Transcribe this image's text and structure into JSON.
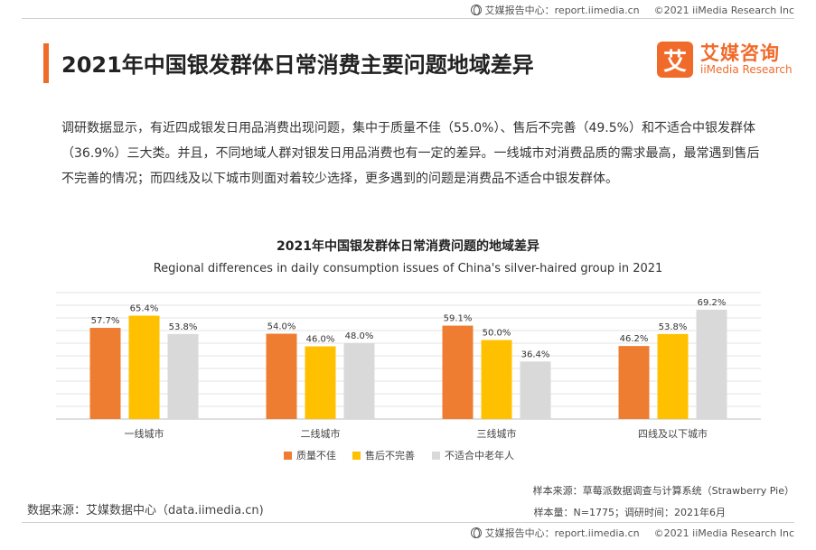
{
  "header": {
    "source_label": "艾媒报告中心：report.iimedia.cn",
    "copyright": "©2021  iiMedia Research  Inc"
  },
  "page_title": "2021年中国银发群体日常消费主要问题地域差异",
  "logo": {
    "cn": "艾媒咨询",
    "en": "iiMedia Research",
    "mark": "艾"
  },
  "summary": "调研数据显示，有近四成银发日用品消费出现问题，集中于质量不佳（55.0%）、售后不完善（49.5%）和不适合中银发群体（36.9%）三大类。并且，不同地域人群对银发日用品消费也有一定的差异。一线城市对消费品质的需求最高，最常遇到售后不完善的情况；而四线及以下城市则面对着较少选择，更多遇到的问题是消费品不适合中银发群体。",
  "colors": {
    "accent": "#f06a2a",
    "quality": "#ee7d31",
    "aftersales": "#ffc000",
    "unsuitable": "#d9d9d9"
  },
  "chart_data": {
    "type": "bar",
    "title": "2021年中国银发群体日常消费问题的地域差异",
    "subtitle": "Regional differences in daily consumption issues of China's silver-haired group in 2021",
    "categories": [
      "一线城市",
      "二线城市",
      "三线城市",
      "四线及以下城市"
    ],
    "series": [
      {
        "name": "质量不佳",
        "values": [
          57.7,
          54.0,
          59.1,
          46.2
        ],
        "color": "#ee7d31"
      },
      {
        "name": "售后不完善",
        "values": [
          65.4,
          46.0,
          50.0,
          53.8
        ],
        "color": "#ffc000"
      },
      {
        "name": "不适合中老年人",
        "values": [
          53.8,
          48.0,
          36.4,
          69.2
        ],
        "color": "#d9d9d9"
      }
    ],
    "unit": "%",
    "ylim": [
      0,
      80
    ],
    "grid": true,
    "legend_position": "bottom"
  },
  "footer": {
    "data_source": "数据来源：艾媒数据中心（data.iimedia.cn)",
    "sample_source": "样本来源：草莓派数据调查与计算系统（Strawberry  Pie）",
    "sample_size": "样本量：N=1775；调研时间：2021年6月",
    "source_label": "艾媒报告中心：report.iimedia.cn",
    "copyright": "©2021  iiMedia Research  Inc"
  }
}
